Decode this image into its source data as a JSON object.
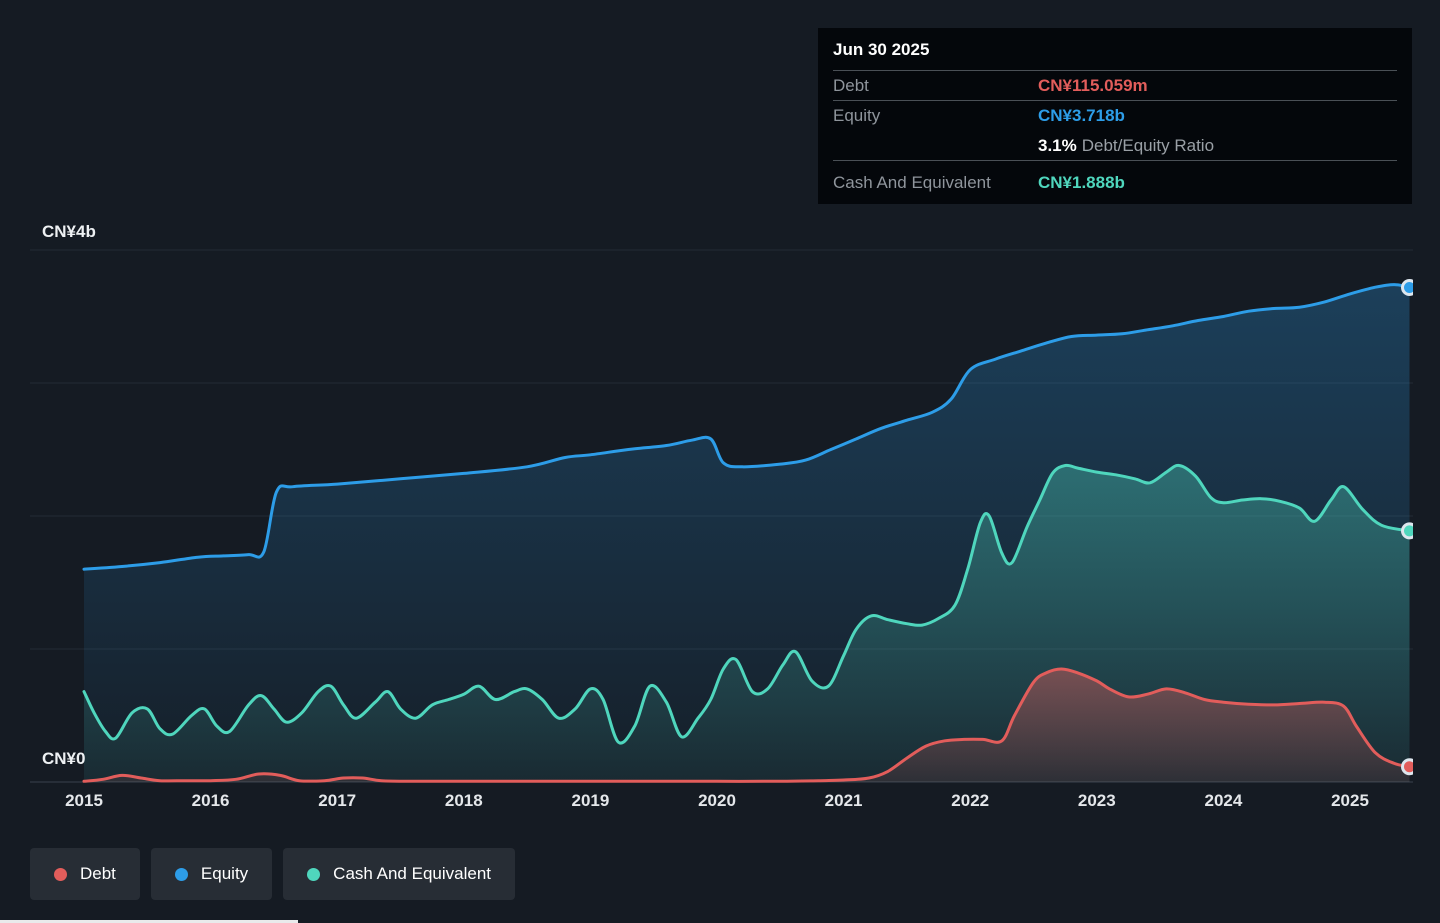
{
  "colors": {
    "debt": "#e25d5b",
    "equity": "#2d9de8",
    "cash": "#4fd6bd",
    "background": "#151b23",
    "tooltip_background": "#04070b",
    "grid": "#242b34"
  },
  "tooltip": {
    "date": "Jun 30 2025",
    "debt": {
      "label": "Debt",
      "value": "CN¥115.059m"
    },
    "equity": {
      "label": "Equity",
      "value": "CN¥3.718b"
    },
    "ratio": {
      "value": "3.1%",
      "label": "Debt/Equity Ratio"
    },
    "cash": {
      "label": "Cash And Equivalent",
      "value": "CN¥1.888b"
    }
  },
  "legend": {
    "items": [
      {
        "label": "Debt",
        "key": "debt"
      },
      {
        "label": "Equity",
        "key": "equity"
      },
      {
        "label": "Cash And Equivalent",
        "key": "cash"
      }
    ]
  },
  "chart_data": {
    "type": "area",
    "unit": "CN¥ billions",
    "x_range": [
      2015,
      2025.5
    ],
    "y_axis": {
      "min": 0,
      "max": 4,
      "top_label": "CN¥4b",
      "zero_label": "CN¥0"
    },
    "y_gridlines_b": [
      0,
      1,
      2,
      3,
      4
    ],
    "x_ticks": [
      2015,
      2016,
      2017,
      2018,
      2019,
      2020,
      2021,
      2022,
      2023,
      2024,
      2025
    ],
    "series": [
      {
        "name": "Equity",
        "color": "#2d9de8",
        "points": [
          [
            2015.0,
            1.6
          ],
          [
            2015.3,
            1.62
          ],
          [
            2015.6,
            1.65
          ],
          [
            2015.9,
            1.69
          ],
          [
            2016.1,
            1.7
          ],
          [
            2016.3,
            1.71
          ],
          [
            2016.42,
            1.73
          ],
          [
            2016.52,
            2.18
          ],
          [
            2016.65,
            2.22
          ],
          [
            2017.0,
            2.24
          ],
          [
            2017.5,
            2.28
          ],
          [
            2018.0,
            2.32
          ],
          [
            2018.5,
            2.37
          ],
          [
            2018.8,
            2.44
          ],
          [
            2019.0,
            2.46
          ],
          [
            2019.3,
            2.5
          ],
          [
            2019.6,
            2.53
          ],
          [
            2019.8,
            2.57
          ],
          [
            2019.95,
            2.58
          ],
          [
            2020.05,
            2.4
          ],
          [
            2020.2,
            2.37
          ],
          [
            2020.5,
            2.39
          ],
          [
            2020.7,
            2.42
          ],
          [
            2020.9,
            2.5
          ],
          [
            2021.1,
            2.58
          ],
          [
            2021.3,
            2.66
          ],
          [
            2021.5,
            2.72
          ],
          [
            2021.7,
            2.78
          ],
          [
            2021.85,
            2.88
          ],
          [
            2022.0,
            3.1
          ],
          [
            2022.2,
            3.18
          ],
          [
            2022.4,
            3.24
          ],
          [
            2022.6,
            3.3
          ],
          [
            2022.8,
            3.35
          ],
          [
            2023.0,
            3.36
          ],
          [
            2023.2,
            3.37
          ],
          [
            2023.4,
            3.4
          ],
          [
            2023.6,
            3.43
          ],
          [
            2023.8,
            3.47
          ],
          [
            2024.0,
            3.5
          ],
          [
            2024.2,
            3.54
          ],
          [
            2024.4,
            3.56
          ],
          [
            2024.6,
            3.57
          ],
          [
            2024.8,
            3.61
          ],
          [
            2025.0,
            3.67
          ],
          [
            2025.2,
            3.72
          ],
          [
            2025.35,
            3.74
          ],
          [
            2025.47,
            3.718
          ]
        ]
      },
      {
        "name": "Cash And Equivalent",
        "color": "#4fd6bd",
        "points": [
          [
            2015.0,
            0.68
          ],
          [
            2015.08,
            0.52
          ],
          [
            2015.17,
            0.38
          ],
          [
            2015.25,
            0.33
          ],
          [
            2015.38,
            0.52
          ],
          [
            2015.5,
            0.55
          ],
          [
            2015.6,
            0.4
          ],
          [
            2015.7,
            0.36
          ],
          [
            2015.85,
            0.5
          ],
          [
            2015.95,
            0.55
          ],
          [
            2016.05,
            0.42
          ],
          [
            2016.15,
            0.38
          ],
          [
            2016.3,
            0.58
          ],
          [
            2016.4,
            0.65
          ],
          [
            2016.5,
            0.55
          ],
          [
            2016.6,
            0.45
          ],
          [
            2016.72,
            0.52
          ],
          [
            2016.85,
            0.68
          ],
          [
            2016.95,
            0.72
          ],
          [
            2017.05,
            0.58
          ],
          [
            2017.15,
            0.48
          ],
          [
            2017.3,
            0.6
          ],
          [
            2017.4,
            0.68
          ],
          [
            2017.5,
            0.55
          ],
          [
            2017.62,
            0.48
          ],
          [
            2017.75,
            0.58
          ],
          [
            2017.88,
            0.62
          ],
          [
            2018.0,
            0.66
          ],
          [
            2018.12,
            0.72
          ],
          [
            2018.25,
            0.62
          ],
          [
            2018.4,
            0.68
          ],
          [
            2018.5,
            0.7
          ],
          [
            2018.62,
            0.62
          ],
          [
            2018.75,
            0.48
          ],
          [
            2018.88,
            0.55
          ],
          [
            2019.0,
            0.7
          ],
          [
            2019.1,
            0.62
          ],
          [
            2019.22,
            0.3
          ],
          [
            2019.35,
            0.42
          ],
          [
            2019.47,
            0.72
          ],
          [
            2019.6,
            0.6
          ],
          [
            2019.72,
            0.34
          ],
          [
            2019.85,
            0.48
          ],
          [
            2019.95,
            0.62
          ],
          [
            2020.05,
            0.85
          ],
          [
            2020.15,
            0.92
          ],
          [
            2020.28,
            0.68
          ],
          [
            2020.4,
            0.7
          ],
          [
            2020.52,
            0.88
          ],
          [
            2020.62,
            0.98
          ],
          [
            2020.75,
            0.76
          ],
          [
            2020.88,
            0.72
          ],
          [
            2021.0,
            0.95
          ],
          [
            2021.1,
            1.15
          ],
          [
            2021.22,
            1.25
          ],
          [
            2021.35,
            1.22
          ],
          [
            2021.5,
            1.19
          ],
          [
            2021.62,
            1.18
          ],
          [
            2021.75,
            1.23
          ],
          [
            2021.88,
            1.33
          ],
          [
            2021.98,
            1.6
          ],
          [
            2022.08,
            1.95
          ],
          [
            2022.15,
            2.0
          ],
          [
            2022.25,
            1.72
          ],
          [
            2022.33,
            1.65
          ],
          [
            2022.45,
            1.92
          ],
          [
            2022.55,
            2.12
          ],
          [
            2022.65,
            2.32
          ],
          [
            2022.75,
            2.38
          ],
          [
            2022.85,
            2.36
          ],
          [
            2023.0,
            2.33
          ],
          [
            2023.15,
            2.31
          ],
          [
            2023.3,
            2.28
          ],
          [
            2023.42,
            2.25
          ],
          [
            2023.55,
            2.33
          ],
          [
            2023.65,
            2.38
          ],
          [
            2023.78,
            2.3
          ],
          [
            2023.9,
            2.14
          ],
          [
            2024.0,
            2.1
          ],
          [
            2024.15,
            2.12
          ],
          [
            2024.3,
            2.13
          ],
          [
            2024.45,
            2.11
          ],
          [
            2024.6,
            2.06
          ],
          [
            2024.72,
            1.96
          ],
          [
            2024.85,
            2.12
          ],
          [
            2024.95,
            2.22
          ],
          [
            2025.1,
            2.05
          ],
          [
            2025.25,
            1.93
          ],
          [
            2025.47,
            1.888
          ]
        ]
      },
      {
        "name": "Debt",
        "color": "#e25d5b",
        "points": [
          [
            2015.0,
            0.005
          ],
          [
            2015.15,
            0.02
          ],
          [
            2015.3,
            0.05
          ],
          [
            2015.45,
            0.03
          ],
          [
            2015.6,
            0.01
          ],
          [
            2015.8,
            0.01
          ],
          [
            2016.0,
            0.01
          ],
          [
            2016.2,
            0.02
          ],
          [
            2016.38,
            0.06
          ],
          [
            2016.55,
            0.05
          ],
          [
            2016.7,
            0.01
          ],
          [
            2016.9,
            0.01
          ],
          [
            2017.05,
            0.03
          ],
          [
            2017.2,
            0.03
          ],
          [
            2017.35,
            0.01
          ],
          [
            2017.6,
            0.005
          ],
          [
            2018.0,
            0.005
          ],
          [
            2018.5,
            0.005
          ],
          [
            2019.0,
            0.005
          ],
          [
            2019.5,
            0.005
          ],
          [
            2020.0,
            0.005
          ],
          [
            2020.5,
            0.005
          ],
          [
            2020.8,
            0.01
          ],
          [
            2021.0,
            0.015
          ],
          [
            2021.2,
            0.03
          ],
          [
            2021.35,
            0.08
          ],
          [
            2021.5,
            0.18
          ],
          [
            2021.65,
            0.27
          ],
          [
            2021.8,
            0.31
          ],
          [
            2021.95,
            0.32
          ],
          [
            2022.1,
            0.32
          ],
          [
            2022.25,
            0.31
          ],
          [
            2022.35,
            0.5
          ],
          [
            2022.5,
            0.75
          ],
          [
            2022.6,
            0.82
          ],
          [
            2022.72,
            0.85
          ],
          [
            2022.85,
            0.82
          ],
          [
            2023.0,
            0.76
          ],
          [
            2023.1,
            0.7
          ],
          [
            2023.25,
            0.64
          ],
          [
            2023.4,
            0.66
          ],
          [
            2023.55,
            0.7
          ],
          [
            2023.7,
            0.67
          ],
          [
            2023.85,
            0.62
          ],
          [
            2024.0,
            0.6
          ],
          [
            2024.2,
            0.585
          ],
          [
            2024.4,
            0.58
          ],
          [
            2024.6,
            0.59
          ],
          [
            2024.8,
            0.6
          ],
          [
            2024.95,
            0.57
          ],
          [
            2025.05,
            0.42
          ],
          [
            2025.2,
            0.22
          ],
          [
            2025.35,
            0.14
          ],
          [
            2025.47,
            0.115
          ]
        ]
      }
    ]
  }
}
